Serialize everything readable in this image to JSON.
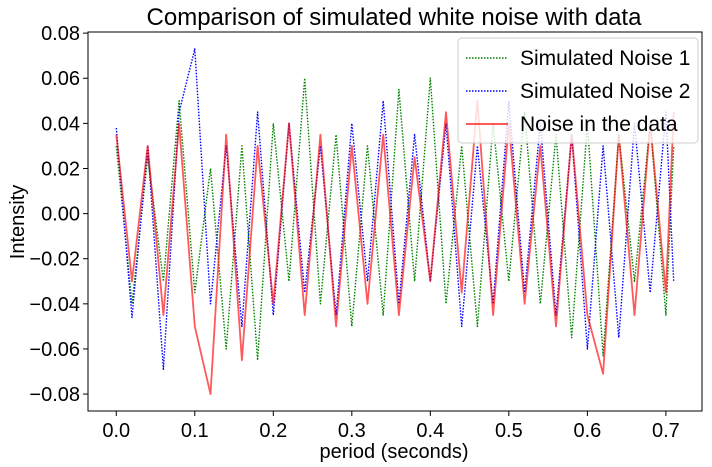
{
  "chart_data": {
    "type": "line",
    "title": "Comparison of simulated white noise with data",
    "xlabel": "period (seconds)",
    "ylabel": "Intensity",
    "xlim": [
      -0.036,
      0.746
    ],
    "ylim": [
      -0.0875,
      0.0805
    ],
    "x_ticks": [
      0.0,
      0.1,
      0.2,
      0.3,
      0.4,
      0.5,
      0.6,
      0.7
    ],
    "x_tick_labels": [
      "0.0",
      "0.1",
      "0.2",
      "0.3",
      "0.4",
      "0.5",
      "0.6",
      "0.7"
    ],
    "y_ticks": [
      -0.08,
      -0.06,
      -0.04,
      -0.02,
      0.0,
      0.02,
      0.04,
      0.06,
      0.08
    ],
    "y_tick_labels": [
      "−0.08",
      "−0.06",
      "−0.04",
      "−0.02",
      "0.00",
      "0.02",
      "0.04",
      "0.06",
      "0.08"
    ],
    "grid": false,
    "legend_position": "top-right",
    "x": [
      0.0,
      0.02,
      0.04,
      0.06,
      0.08,
      0.1,
      0.12,
      0.14,
      0.16,
      0.18,
      0.2,
      0.22,
      0.24,
      0.26,
      0.28,
      0.3,
      0.32,
      0.34,
      0.36,
      0.38,
      0.4,
      0.42,
      0.44,
      0.46,
      0.48,
      0.5,
      0.52,
      0.54,
      0.56,
      0.58,
      0.6,
      0.62,
      0.64,
      0.66,
      0.68,
      0.7,
      0.71
    ],
    "series": [
      {
        "name": "Simulated Noise 1",
        "color": "#008000",
        "style": "dotted",
        "values": [
          0.03,
          -0.04,
          0.025,
          -0.03,
          0.05,
          -0.035,
          0.02,
          -0.06,
          0.03,
          -0.065,
          0.04,
          -0.03,
          0.06,
          -0.04,
          0.035,
          -0.05,
          0.03,
          -0.045,
          0.055,
          -0.03,
          0.06,
          -0.04,
          0.03,
          -0.05,
          0.04,
          -0.03,
          0.045,
          -0.04,
          0.035,
          -0.055,
          0.04,
          -0.063,
          0.035,
          -0.03,
          0.04,
          -0.045,
          0.03
        ]
      },
      {
        "name": "Simulated Noise 2",
        "color": "#0000ff",
        "style": "dotted",
        "values": [
          0.038,
          -0.046,
          0.03,
          -0.069,
          0.045,
          0.073,
          -0.04,
          0.03,
          -0.05,
          0.045,
          -0.045,
          0.04,
          -0.035,
          0.03,
          -0.045,
          0.04,
          -0.03,
          0.05,
          -0.04,
          0.035,
          -0.03,
          0.04,
          -0.05,
          0.03,
          -0.04,
          0.05,
          -0.035,
          0.04,
          -0.045,
          0.035,
          -0.06,
          0.03,
          -0.055,
          0.04,
          -0.035,
          0.045,
          -0.03
        ]
      },
      {
        "name": "Noise in the data",
        "color": "#ff0000",
        "style": "solid",
        "values": [
          0.035,
          -0.03,
          0.03,
          -0.045,
          0.04,
          -0.05,
          -0.08,
          0.035,
          -0.065,
          0.03,
          -0.04,
          0.04,
          -0.045,
          0.035,
          -0.05,
          0.03,
          -0.04,
          0.035,
          -0.045,
          0.025,
          -0.03,
          0.045,
          -0.035,
          0.05,
          -0.045,
          0.04,
          -0.04,
          0.03,
          -0.05,
          0.035,
          -0.045,
          -0.071,
          0.035,
          -0.045,
          0.04,
          -0.035,
          0.045
        ]
      }
    ]
  }
}
